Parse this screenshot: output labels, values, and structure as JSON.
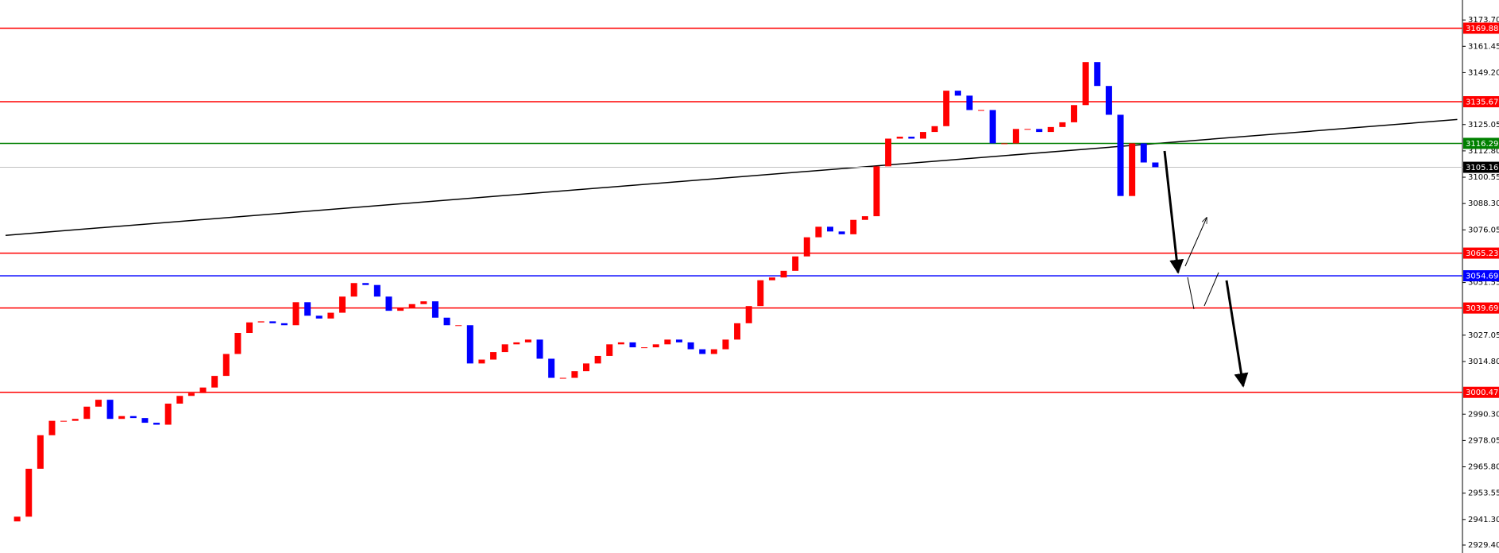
{
  "chart_data": {
    "type": "candlestick",
    "closes": [
      2940.4,
      2942.6,
      2964.9,
      2980.5,
      2987.2,
      2987.2,
      2988.1,
      2993.8,
      2997.0,
      2988.1,
      2989.4,
      2988.5,
      2986.3,
      2985.4,
      2995.2,
      2998.8,
      3000.1,
      3002.7,
      3008.1,
      3018.3,
      3028.1,
      3033.0,
      3033.5,
      3032.6,
      3031.7,
      3042.4,
      3036.1,
      3034.8,
      3037.5,
      3045.0,
      3051.3,
      3050.4,
      3045.0,
      3038.4,
      3039.7,
      3041.5,
      3042.8,
      3035.2,
      3031.7,
      3031.7,
      3013.9,
      3015.7,
      3019.2,
      3022.8,
      3023.7,
      3025.0,
      3016.1,
      3007.2,
      3007.2,
      3010.3,
      3013.9,
      3017.4,
      3022.8,
      3023.7,
      3021.4,
      3021.4,
      3022.8,
      3025.0,
      3023.7,
      3020.5,
      3018.3,
      3020.5,
      3025.0,
      3032.6,
      3040.6,
      3052.6,
      3053.9,
      3057.0,
      3063.7,
      3072.6,
      3077.5,
      3075.3,
      3074.0,
      3080.7,
      3082.4,
      3105.6,
      3118.5,
      3119.4,
      3118.5,
      3121.6,
      3124.3,
      3140.8,
      3138.5,
      3131.8,
      3131.8,
      3116.3,
      3116.3,
      3123.0,
      3123.0,
      3121.6,
      3123.9,
      3126.1,
      3134.1,
      3154.1,
      3143.0,
      3129.6,
      3091.8,
      3116.3,
      3107.4,
      3105.2
    ],
    "up_color": "#ff0000",
    "down_color": "#0000ff",
    "ylim": [
      2925.7,
      3183.0
    ],
    "yticks": [
      {
        "value": 3173.7,
        "label": "3173.70"
      },
      3161.45,
      {
        "value": 3149.2,
        "label": "3149.20"
      },
      3125.05,
      {
        "value": 3112.8,
        "label": "3112.80"
      },
      3100.55,
      {
        "value": 3088.3,
        "label": "3088.30"
      },
      3076.05,
      3051.55,
      3027.05,
      {
        "value": 3014.8,
        "label": "3014.80"
      },
      {
        "value": 2990.3,
        "label": "2990.30"
      },
      2978.05,
      {
        "value": 2965.8,
        "label": "2965.80"
      },
      2953.55,
      {
        "value": 2941.3,
        "label": "2941.30"
      },
      {
        "value": 2929.4,
        "label": "2929.40"
      }
    ],
    "levels": [
      {
        "value": 3169.88,
        "color": "#ff0000"
      },
      {
        "value": 3135.67,
        "color": "#ff0000"
      },
      {
        "value": 3116.29,
        "color": "#008000"
      },
      {
        "value": 3105.16,
        "color": "#000000"
      },
      {
        "value": 3065.23,
        "color": "#ff0000"
      },
      {
        "value": 3054.69,
        "color": "#0000ff"
      },
      {
        "value": 3039.69,
        "color": "#ff0000"
      },
      {
        "value": 3000.47,
        "color": "#ff0000"
      }
    ],
    "trendline": {
      "x": [
        0,
        125
      ],
      "y": [
        3073.5,
        3127.4
      ],
      "color": "#000000"
    }
  }
}
